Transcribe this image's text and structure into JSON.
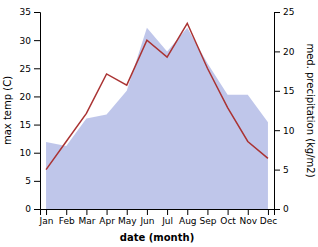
{
  "chart_data": {
    "type": "line",
    "categories": [
      "Jan",
      "Feb",
      "Mar",
      "Apr",
      "May",
      "Jun",
      "Jul",
      "Aug",
      "Sep",
      "Oct",
      "Nov",
      "Dec"
    ],
    "series": [
      {
        "type": "area",
        "axis": "y2",
        "color": "#b8c0e8",
        "values": [
          8.5,
          8,
          11.5,
          12,
          15,
          23,
          20,
          23,
          18.5,
          14.5,
          14.5,
          11
        ]
      },
      {
        "type": "line",
        "color": "#aa3333",
        "values": [
          7,
          12,
          17,
          24,
          22,
          30,
          27,
          33,
          25,
          18,
          12,
          9
        ]
      }
    ],
    "xlabel": "date (month)",
    "ylabel": "max temp (C)",
    "y2label": "med. precipitation (kg/m2)",
    "ylim": [
      0,
      35
    ],
    "yticks": [
      0,
      5,
      10,
      15,
      20,
      25,
      30,
      35
    ],
    "y2lim": [
      0,
      25
    ],
    "y2ticks": [
      0,
      5,
      10,
      15,
      20,
      25
    ],
    "grid": false
  }
}
